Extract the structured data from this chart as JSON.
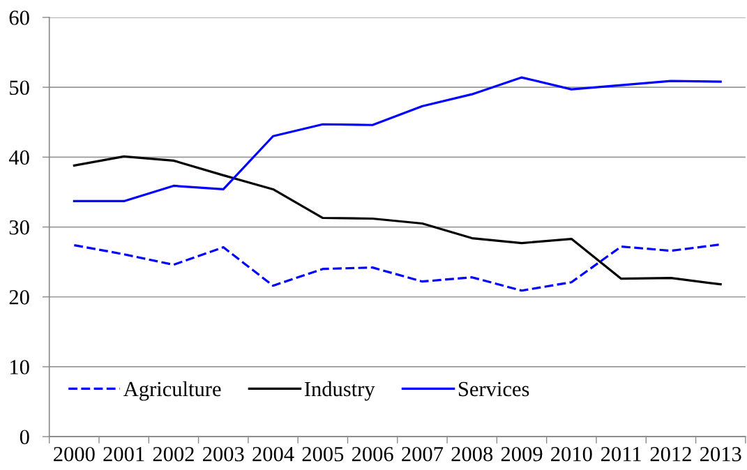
{
  "chart_data": {
    "type": "line",
    "categories": [
      "2000",
      "2001",
      "2002",
      "2003",
      "2004",
      "2005",
      "2006",
      "2007",
      "2008",
      "2009",
      "2010",
      "2011",
      "2012",
      "2013"
    ],
    "series": [
      {
        "name": "Agriculture",
        "color": "#0000ff",
        "line_style": "dashed",
        "values": [
          27.4,
          26.1,
          24.6,
          27.1,
          21.6,
          24.0,
          24.2,
          22.2,
          22.8,
          20.9,
          22.1,
          27.2,
          26.6,
          27.5
        ]
      },
      {
        "name": "Industry",
        "color": "#000000",
        "line_style": "solid",
        "values": [
          38.8,
          40.1,
          39.5,
          37.4,
          35.4,
          31.3,
          31.2,
          30.5,
          28.4,
          27.7,
          28.3,
          22.6,
          22.7,
          21.8
        ]
      },
      {
        "name": "Services",
        "color": "#0000ff",
        "line_style": "solid",
        "values": [
          33.7,
          33.7,
          35.9,
          35.4,
          43.0,
          44.7,
          44.6,
          47.3,
          49.0,
          51.4,
          49.7,
          50.3,
          50.9,
          50.8
        ]
      }
    ],
    "ylim": [
      0,
      60
    ],
    "yticks": [
      0,
      10,
      20,
      30,
      40,
      50,
      60
    ],
    "grid": "y",
    "legend": "bottom left"
  }
}
